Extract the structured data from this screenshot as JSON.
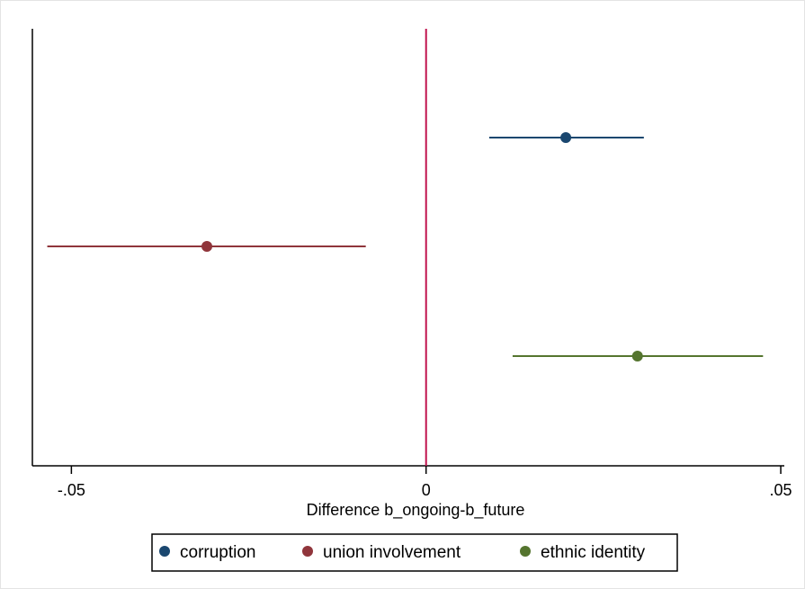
{
  "chart_data": {
    "type": "scatter",
    "subtype": "coefficient-plot",
    "xlabel": "Difference b_ongoing-b_future",
    "xlim": [
      -0.0555,
      0.0505
    ],
    "xticks": [
      {
        "value": -0.05,
        "label": "-.05"
      },
      {
        "value": 0,
        "label": "0"
      },
      {
        "value": 0.05,
        "label": ".05"
      }
    ],
    "reference_line": {
      "x": 0,
      "color": "#c0134e"
    },
    "grid": false,
    "legend_position": "bottom",
    "series": [
      {
        "name": "corruption",
        "estimate": 0.0197,
        "ci_low": 0.0089,
        "ci_high": 0.0307,
        "color": "#1a476f"
      },
      {
        "name": "union involvement",
        "estimate": -0.0309,
        "ci_low": -0.0534,
        "ci_high": -0.0085,
        "color": "#90353b"
      },
      {
        "name": "ethnic identity",
        "estimate": 0.0298,
        "ci_low": 0.0122,
        "ci_high": 0.0475,
        "color": "#55752f"
      }
    ]
  }
}
